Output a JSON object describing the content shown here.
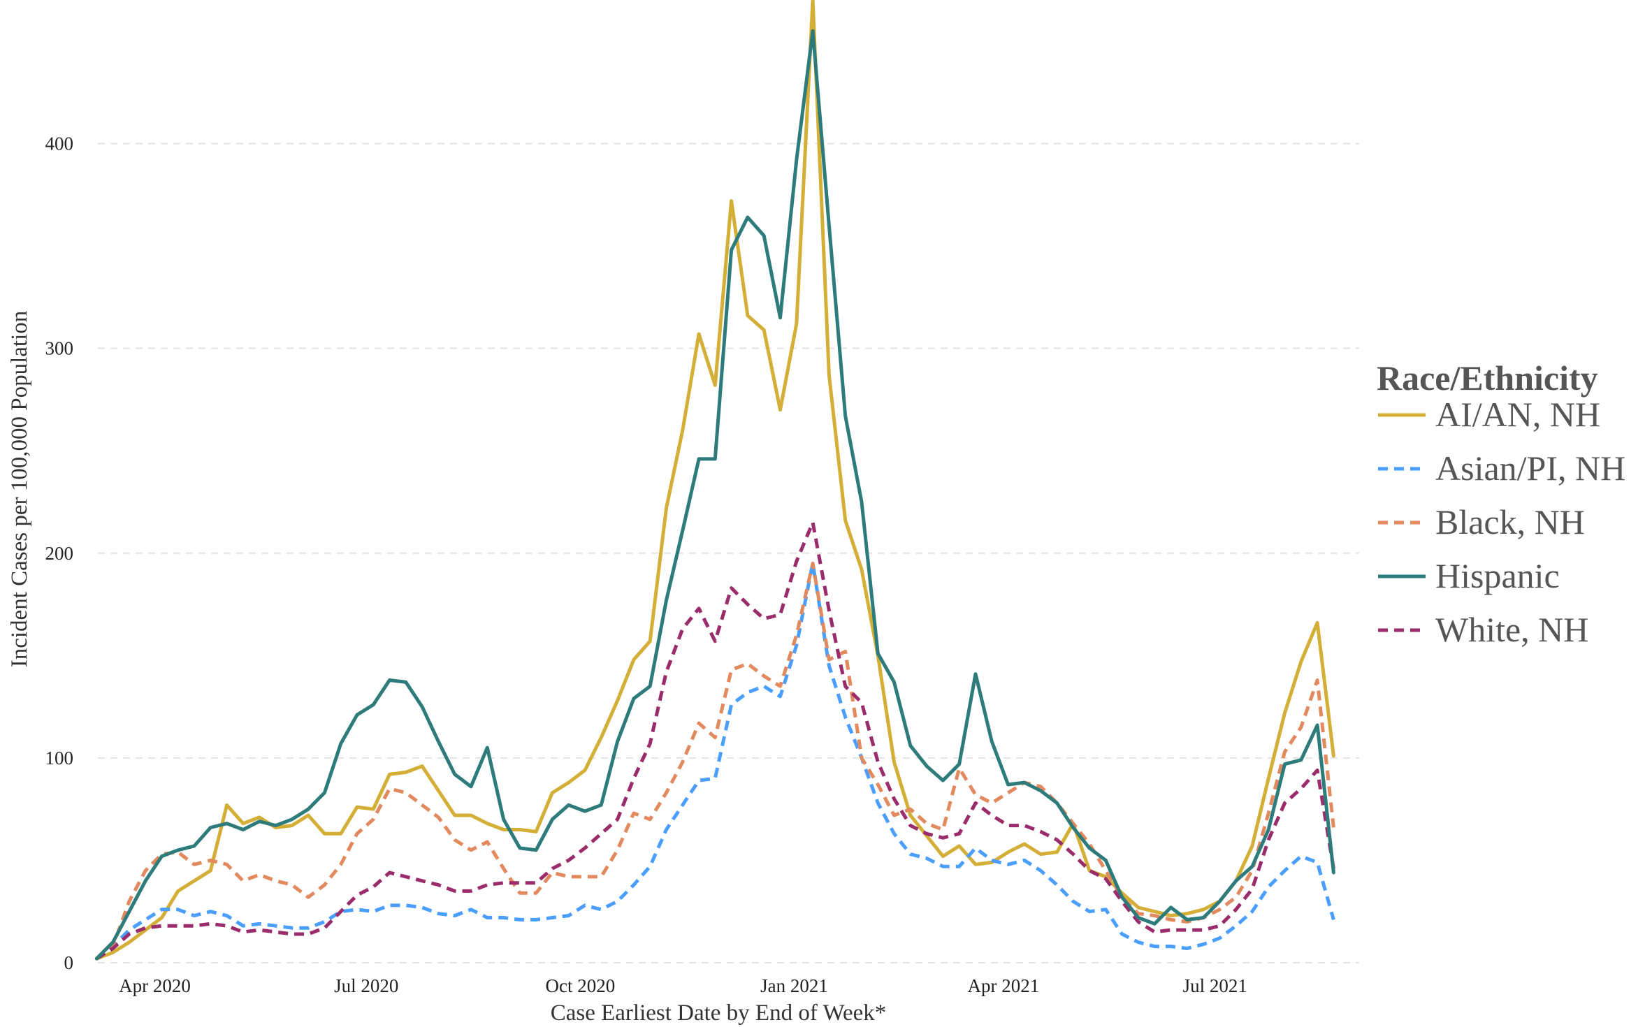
{
  "chart_data": {
    "type": "line",
    "title": "",
    "xlabel": "Case Earliest Date by End of Week*",
    "ylabel": "Incident Cases per 100,000 Population",
    "legend_title": "Race/Ethnicity",
    "legend_position": "right",
    "grid": "horizontal dashed",
    "start_date": "2020-03-07",
    "week_interval_days": 7,
    "xlim": [
      "2020-02-29",
      "2021-09-01"
    ],
    "ylim": [
      0,
      465
    ],
    "y_ticks": [
      0,
      100,
      200,
      300,
      400
    ],
    "x_ticks": [
      {
        "label": "Apr 2020",
        "date": "2020-04-01"
      },
      {
        "label": "Jul 2020",
        "date": "2020-07-01"
      },
      {
        "label": "Oct 2020",
        "date": "2020-10-01"
      },
      {
        "label": "Jan 2021",
        "date": "2021-01-01"
      },
      {
        "label": "Apr 2021",
        "date": "2021-04-01"
      },
      {
        "label": "Jul 2021",
        "date": "2021-07-01"
      }
    ],
    "series": [
      {
        "name": "AI/AN, NH",
        "color": "#D4AF37",
        "dashed": false,
        "values": [
          2,
          5,
          10,
          16,
          22,
          35,
          40,
          45,
          77,
          68,
          71,
          66,
          67,
          72,
          63,
          63,
          76,
          75,
          92,
          93,
          96,
          84,
          72,
          72,
          68,
          65,
          65,
          64,
          83,
          88,
          94,
          110,
          128,
          148,
          157,
          222,
          260,
          307,
          282,
          372,
          316,
          309,
          270,
          312,
          470,
          287,
          216,
          192,
          150,
          98,
          72,
          62,
          52,
          57,
          48,
          49,
          54,
          58,
          53,
          54,
          68,
          45,
          42,
          34,
          27,
          25,
          23,
          24,
          26,
          30,
          40,
          57,
          90,
          122,
          147,
          166,
          101
        ]
      },
      {
        "name": "Asian/PI, NH",
        "color": "#4A9EFF",
        "dashed": true,
        "values": [
          2,
          8,
          16,
          21,
          26,
          26,
          23,
          25,
          23,
          18,
          19,
          18,
          17,
          17,
          20,
          25,
          26,
          25,
          28,
          28,
          27,
          24,
          23,
          26,
          22,
          22,
          21,
          21,
          22,
          23,
          28,
          26,
          30,
          38,
          47,
          65,
          77,
          89,
          90,
          126,
          132,
          135,
          130,
          155,
          195,
          145,
          120,
          100,
          78,
          63,
          53,
          51,
          47,
          47,
          56,
          50,
          48,
          50,
          45,
          38,
          30,
          25,
          26,
          14,
          10,
          8,
          8,
          7,
          9,
          12,
          18,
          25,
          37,
          45,
          52,
          49,
          21
        ]
      },
      {
        "name": "Black, NH",
        "color": "#E28A5E",
        "dashed": true,
        "values": [
          2,
          8,
          30,
          45,
          53,
          54,
          48,
          50,
          48,
          40,
          43,
          40,
          38,
          32,
          38,
          48,
          63,
          70,
          85,
          83,
          77,
          71,
          60,
          55,
          59,
          46,
          34,
          34,
          44,
          42,
          42,
          42,
          55,
          73,
          70,
          83,
          98,
          117,
          110,
          143,
          146,
          140,
          135,
          160,
          195,
          148,
          152,
          100,
          87,
          72,
          75,
          68,
          65,
          95,
          82,
          78,
          83,
          88,
          86,
          78,
          68,
          58,
          45,
          32,
          24,
          23,
          21,
          20,
          22,
          26,
          32,
          45,
          73,
          103,
          115,
          138,
          66
        ]
      },
      {
        "name": "Hispanic",
        "color": "#2E7B7B",
        "dashed": false,
        "values": [
          2,
          10,
          25,
          40,
          52,
          55,
          57,
          66,
          68,
          65,
          69,
          67,
          70,
          75,
          83,
          107,
          121,
          126,
          138,
          137,
          125,
          108,
          92,
          86,
          105,
          70,
          56,
          55,
          70,
          77,
          74,
          77,
          108,
          129,
          135,
          177,
          211,
          246,
          246,
          348,
          364,
          355,
          315,
          392,
          455,
          360,
          267,
          225,
          151,
          137,
          106,
          96,
          89,
          97,
          141,
          108,
          87,
          88,
          84,
          78,
          66,
          56,
          50,
          32,
          22,
          19,
          27,
          21,
          22,
          30,
          40,
          47,
          65,
          97,
          99,
          116,
          44
        ]
      },
      {
        "name": "White, NH",
        "color": "#9B2C6B",
        "dashed": true,
        "values": [
          2,
          7,
          14,
          17,
          18,
          18,
          18,
          19,
          18,
          15,
          16,
          15,
          14,
          14,
          17,
          25,
          33,
          37,
          44,
          42,
          40,
          38,
          35,
          35,
          38,
          39,
          39,
          39,
          46,
          50,
          56,
          63,
          70,
          90,
          107,
          142,
          163,
          173,
          157,
          183,
          175,
          168,
          170,
          196,
          215,
          172,
          135,
          127,
          98,
          80,
          67,
          63,
          61,
          63,
          78,
          72,
          67,
          67,
          64,
          60,
          53,
          45,
          41,
          30,
          20,
          15,
          16,
          16,
          16,
          18,
          26,
          36,
          60,
          78,
          85,
          94,
          46
        ]
      }
    ]
  }
}
